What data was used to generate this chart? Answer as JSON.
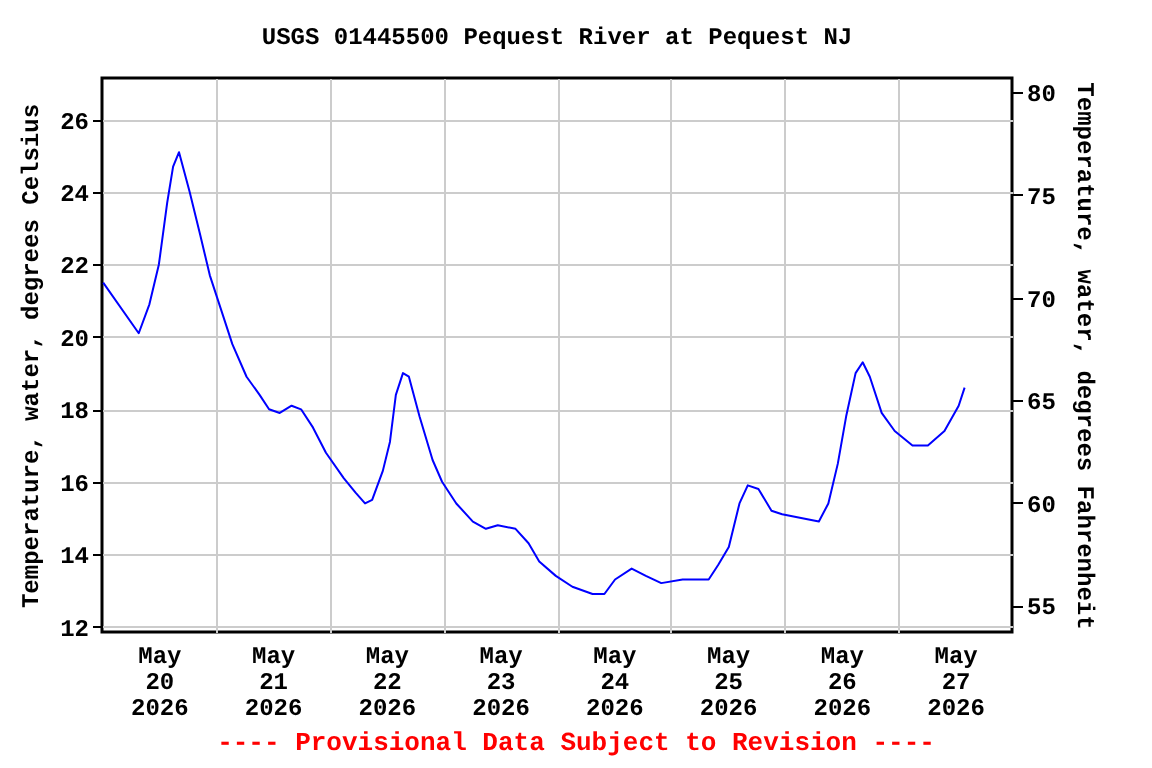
{
  "chart_data": {
    "type": "line",
    "title": "USGS 01445500 Pequest River at Pequest NJ",
    "ylabel": "Temperature, water, degrees Celsius",
    "y2label": "Temperature, water, degrees Fahrenheit",
    "annotations": [
      "---- Provisional Data Subject to Revision ----"
    ],
    "x": [
      "2026-05-20T00:15",
      "2026-05-20T07:45",
      "2026-05-20T10:00",
      "2026-05-20T12:00",
      "2026-05-20T13:45",
      "2026-05-20T15:00",
      "2026-05-20T16:15",
      "2026-05-20T18:30",
      "2026-05-20T20:45",
      "2026-05-20T22:45",
      "2026-05-21T01:00",
      "2026-05-21T03:30",
      "2026-05-21T06:30",
      "2026-05-21T09:15",
      "2026-05-21T11:15",
      "2026-05-21T13:30",
      "2026-05-21T16:00",
      "2026-05-21T18:00",
      "2026-05-21T20:30",
      "2026-05-21T23:15",
      "2026-05-22T03:00",
      "2026-05-22T05:30",
      "2026-05-22T07:30",
      "2026-05-22T09:00",
      "2026-05-22T11:15",
      "2026-05-22T12:45",
      "2026-05-22T14:00",
      "2026-05-22T15:30",
      "2026-05-22T16:45",
      "2026-05-22T19:00",
      "2026-05-22T21:45",
      "2026-05-22T23:45",
      "2026-05-23T02:45",
      "2026-05-23T06:15",
      "2026-05-23T09:00",
      "2026-05-23T11:30",
      "2026-05-23T15:15",
      "2026-05-23T18:00",
      "2026-05-23T20:15",
      "2026-05-23T23:45",
      "2026-05-24T03:15",
      "2026-05-24T07:30",
      "2026-05-24T10:00",
      "2026-05-24T12:15",
      "2026-05-24T15:45",
      "2026-05-24T18:45",
      "2026-05-24T22:00",
      "2026-05-25T02:30",
      "2026-05-25T08:00",
      "2026-05-25T10:00",
      "2026-05-25T12:15",
      "2026-05-25T14:30",
      "2026-05-25T16:15",
      "2026-05-25T18:30",
      "2026-05-25T21:15",
      "2026-05-25T23:30",
      "2026-05-26T03:30",
      "2026-05-26T07:15",
      "2026-05-26T09:15",
      "2026-05-26T11:15",
      "2026-05-26T13:00",
      "2026-05-26T15:00",
      "2026-05-26T16:30",
      "2026-05-26T18:00",
      "2026-05-26T20:30",
      "2026-05-26T23:15",
      "2026-05-27T03:00",
      "2026-05-27T06:15",
      "2026-05-27T09:45",
      "2026-05-27T12:45",
      "2026-05-27T14:00"
    ],
    "series": [
      {
        "color": "#0000ff",
        "values": [
          21.5,
          20.1,
          20.9,
          22.0,
          23.7,
          24.7,
          25.1,
          24.0,
          22.8,
          21.7,
          20.8,
          19.8,
          18.9,
          18.4,
          18.0,
          17.9,
          18.1,
          18.0,
          17.5,
          16.8,
          16.1,
          15.7,
          15.4,
          15.5,
          16.3,
          17.1,
          18.4,
          19.0,
          18.9,
          17.8,
          16.6,
          16.0,
          15.4,
          14.9,
          14.7,
          14.8,
          14.7,
          14.3,
          13.8,
          13.4,
          13.1,
          12.9,
          12.9,
          13.3,
          13.6,
          13.4,
          13.2,
          13.3,
          13.3,
          13.7,
          14.2,
          15.4,
          15.9,
          15.8,
          15.2,
          15.1,
          15.0,
          14.9,
          15.4,
          16.5,
          17.8,
          19.0,
          19.3,
          18.9,
          17.9,
          17.4,
          17.0,
          17.0,
          17.4,
          18.1,
          18.6
        ]
      }
    ],
    "xlim": [
      "2026-05-20T00:00",
      "2026-05-28T00:00"
    ],
    "xticks": [
      {
        "value": "2026-05-20T12:00",
        "label": "May 20 2026"
      },
      {
        "value": "2026-05-21T12:00",
        "label": "May 21 2026"
      },
      {
        "value": "2026-05-22T12:00",
        "label": "May 22 2026"
      },
      {
        "value": "2026-05-23T12:00",
        "label": "May 23 2026"
      },
      {
        "value": "2026-05-24T12:00",
        "label": "May 24 2026"
      },
      {
        "value": "2026-05-25T12:00",
        "label": "May 25 2026"
      },
      {
        "value": "2026-05-26T12:00",
        "label": "May 26 2026"
      },
      {
        "value": "2026-05-27T12:00",
        "label": "May 27 2026"
      },
      {
        "value": "2026-05-21T00:00",
        "label": null
      },
      {
        "value": "2026-05-22T00:00",
        "label": null
      },
      {
        "value": "2026-05-23T00:00",
        "label": null
      },
      {
        "value": "2026-05-24T00:00",
        "label": null
      },
      {
        "value": "2026-05-25T00:00",
        "label": null
      },
      {
        "value": "2026-05-26T00:00",
        "label": null
      },
      {
        "value": "2026-05-27T00:00",
        "label": null
      }
    ],
    "ylim": [
      11.85,
      27.15
    ],
    "yticks": [
      12,
      14,
      16,
      18,
      20,
      22,
      24,
      26
    ],
    "y2lim": [
      53.7,
      80.7
    ],
    "y2ticks": [
      55,
      60,
      65,
      70,
      75,
      80
    ],
    "grid": true,
    "line_style": "solid",
    "marker": "none"
  }
}
